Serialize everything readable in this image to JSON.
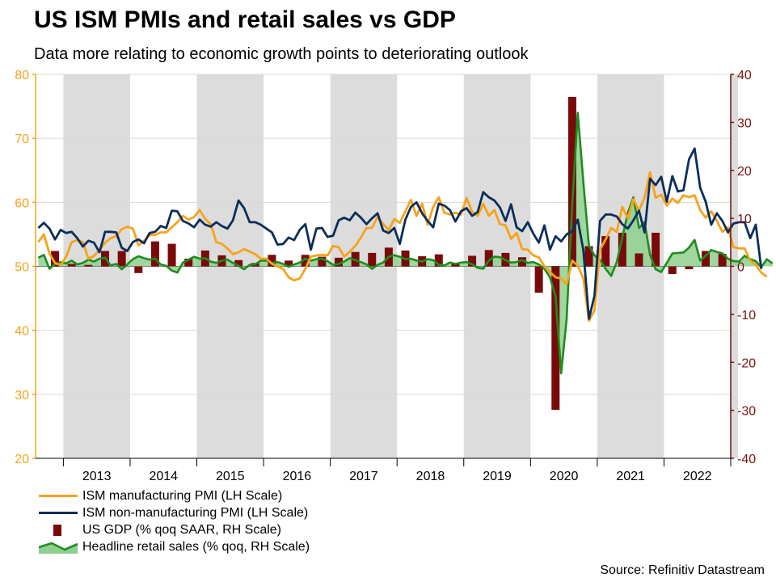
{
  "title": "US ISM PMIs and retail sales vs GDP",
  "subtitle": "Data more relating to economic growth points to deteriorating outlook",
  "source": "Source: Refinitiv Datastream",
  "colors": {
    "ism_manufacturing": "#f7a21b",
    "ism_services": "#0b2e5a",
    "gdp": "#7a0a0a",
    "retail": "#1e8c1e",
    "retail_fill": "#8fcf8f",
    "shade": "#dcdcdc",
    "left_axis": "#f7a21b",
    "right_axis": "#7a1414"
  },
  "legend": [
    {
      "key": "ism_manufacturing",
      "label": "ISM manufacturing PMI (LH Scale)"
    },
    {
      "key": "ism_services",
      "label": "ISM non-manufacturing PMI (LH Scale)"
    },
    {
      "key": "gdp",
      "label": "US GDP (% qoq SAAR, RH Scale)"
    },
    {
      "key": "retail",
      "label": "Headline retail sales (% qoq, RH Scale)"
    }
  ],
  "chart_data": {
    "type": "line",
    "x_start": "2012-08",
    "x_end": "2023-01",
    "years": [
      "2013",
      "2014",
      "2015",
      "2016",
      "2017",
      "2018",
      "2019",
      "2020",
      "2021",
      "2022"
    ],
    "shaded_years": [
      "2013",
      "2015",
      "2017",
      "2019",
      "2021"
    ],
    "left_axis": {
      "min": 20,
      "max": 80,
      "ticks": [
        20,
        30,
        40,
        50,
        60,
        70,
        80
      ]
    },
    "right_axis": {
      "min": -40,
      "max": 40,
      "ticks": [
        -40,
        -30,
        -20,
        -10,
        0,
        10,
        20,
        30,
        40
      ]
    },
    "gridlines": true,
    "series": [
      {
        "key": "ism_manufacturing",
        "name": "ISM manufacturing PMI (LH Scale)",
        "axis": "left",
        "kind": "line",
        "start": "2012-08",
        "values": [
          53.8,
          55.0,
          52.0,
          50.5,
          50.2,
          51.5,
          53.8,
          54.1,
          53.8,
          51.2,
          51.6,
          52.6,
          53.7,
          54.4,
          54.7,
          55.8,
          56.2,
          55.9,
          53.3,
          54.0,
          54.9,
          54.9,
          55.3,
          55.3,
          56.1,
          56.9,
          57.9,
          57.3,
          57.7,
          58.8,
          57.4,
          56.6,
          53.8,
          53.5,
          52.8,
          51.9,
          52.2,
          52.7,
          52.3,
          51.9,
          51.2,
          51.2,
          50.4,
          50.0,
          49.6,
          48.3,
          47.8,
          48.1,
          49.6,
          51.5,
          51.7,
          51.8,
          51.7,
          53.2,
          53.0,
          51.5,
          52.3,
          53.2,
          54.5,
          56.0,
          56.0,
          57.7,
          56.6,
          55.7,
          57.4,
          56.8,
          58.6,
          60.4,
          57.9,
          59.8,
          56.5,
          59.3,
          60.8,
          58.4,
          58.1,
          58.4,
          58.1,
          60.7,
          58.5,
          57.9,
          59.8,
          57.9,
          58.8,
          56.6,
          56.4,
          54.3,
          55.2,
          52.7,
          52.6,
          51.7,
          51.4,
          50.0,
          49.1,
          48.3,
          48.1,
          47.2,
          50.9,
          50.1,
          48.1,
          41.5,
          43.1,
          52.6,
          54.2,
          56.0,
          55.4,
          59.3,
          57.5,
          60.5,
          58.7,
          60.8,
          64.7,
          60.7,
          61.2,
          59.5,
          60.6,
          59.9,
          61.1,
          60.8,
          61.1,
          58.8,
          57.6,
          58.6,
          57.1,
          55.4,
          56.1,
          53.0,
          52.8,
          52.8,
          50.9,
          50.2,
          49.0,
          48.4
        ]
      },
      {
        "key": "ism_services",
        "name": "ISM non-manufacturing PMI (LH Scale)",
        "axis": "left",
        "kind": "line",
        "start": "2012-08",
        "values": [
          56.0,
          56.8,
          55.9,
          54.2,
          55.7,
          55.2,
          55.4,
          54.4,
          53.1,
          54.0,
          53.7,
          52.2,
          55.4,
          55.4,
          55.3,
          52.9,
          52.4,
          53.8,
          54.2,
          53.6,
          55.2,
          55.4,
          56.3,
          56.0,
          58.7,
          58.6,
          57.1,
          56.7,
          56.1,
          57.3,
          56.5,
          56.2,
          56.9,
          56.3,
          55.9,
          57.2,
          60.3,
          59.1,
          56.9,
          56.9,
          56.5,
          55.9,
          55.3,
          53.4,
          53.5,
          54.5,
          54.1,
          55.7,
          56.6,
          52.6,
          55.9,
          56.0,
          54.6,
          54.8,
          57.2,
          57.6,
          57.2,
          58.4,
          57.6,
          56.6,
          57.5,
          58.3,
          55.6,
          55.2,
          56.0,
          53.5,
          57.3,
          59.3,
          60.0,
          58.3,
          57.1,
          56.1,
          59.8,
          59.5,
          58.8,
          57.0,
          58.6,
          59.1,
          57.9,
          58.5,
          61.6,
          60.8,
          60.3,
          59.2,
          57.1,
          59.7,
          56.1,
          55.5,
          56.9,
          55.1,
          53.7,
          56.4,
          52.6,
          54.7,
          53.9,
          55.0,
          55.5,
          57.3,
          52.5,
          41.8,
          45.4,
          57.1,
          58.1,
          58.1,
          57.8,
          56.6,
          55.9,
          57.2,
          58.7,
          55.3,
          63.7,
          62.7,
          64.0,
          60.1,
          64.1,
          61.7,
          61.9,
          66.7,
          68.4,
          62.3,
          60.1,
          56.5,
          58.3,
          57.1,
          55.3,
          56.7,
          56.9,
          56.9,
          54.4,
          56.5,
          49.6
        ]
      },
      {
        "key": "retail",
        "name": "Headline retail sales (% qoq, RH Scale)",
        "axis": "right",
        "kind": "area",
        "start": "2012-08",
        "values": [
          1.8,
          2.4,
          -0.5,
          0.5,
          0.9,
          0.6,
          1.2,
          0.4,
          0.7,
          1.4,
          1.0,
          1.6,
          1.8,
          0.2,
          0.5,
          -0.6,
          0.4,
          1.5,
          2.1,
          1.7,
          1.4,
          1.6,
          0.4,
          0.1,
          -0.9,
          -1.3,
          0.8,
          1.4,
          2.0,
          1.6,
          1.7,
          1.0,
          0.7,
          1.2,
          1.4,
          0.7,
          0.1,
          -0.6,
          0.3,
          0.4,
          1.2,
          1.2,
          0.7,
          0.9,
          0.5,
          -0.1,
          0.4,
          0.8,
          1.6,
          1.2,
          1.5,
          1.6,
          1.1,
          0.3,
          0.5,
          1.0,
          1.7,
          1.3,
          0.9,
          0.4,
          -0.5,
          0.3,
          0.8,
          2.0,
          2.3,
          2.0,
          1.5,
          1.6,
          1.2,
          1.0,
          1.5,
          1.3,
          0.3,
          0.2,
          0.8,
          0.5,
          0.8,
          0.9,
          0.4,
          -0.3,
          -0.5,
          1.2,
          2.0,
          1.9,
          1.3,
          0.8,
          0.9,
          1.3,
          0.7,
          0.9,
          0.4,
          -0.5,
          -2.3,
          -6.2,
          -22.3,
          -11.0,
          12.8,
          32.0,
          17.5,
          4.3,
          2.3,
          1.4,
          -0.5,
          -2.0,
          0.9,
          6.0,
          11.1,
          14.4,
          8.0,
          9.2,
          2.4,
          -0.6,
          -1.2,
          0.7,
          2.7,
          2.8,
          2.9,
          3.9,
          5.5,
          1.2,
          2.2,
          3.4,
          3.0,
          2.7,
          1.6,
          1.1,
          1.0,
          2.2,
          1.5,
          1.1,
          -0.2,
          1.5,
          0.6
        ]
      },
      {
        "key": "gdp",
        "name": "US GDP (% qoq SAAR, RH Scale)",
        "axis": "right",
        "kind": "bar",
        "quarter_months": [
          "2012-11",
          "2013-02",
          "2013-05",
          "2013-08",
          "2013-11",
          "2014-02",
          "2014-05",
          "2014-08",
          "2014-11",
          "2015-02",
          "2015-05",
          "2015-08",
          "2015-11",
          "2016-02",
          "2016-05",
          "2016-08",
          "2016-11",
          "2017-02",
          "2017-05",
          "2017-08",
          "2017-11",
          "2018-02",
          "2018-05",
          "2018-08",
          "2018-11",
          "2019-02",
          "2019-05",
          "2019-08",
          "2019-11",
          "2020-02",
          "2020-05",
          "2020-08",
          "2020-11",
          "2021-02",
          "2021-05",
          "2021-08",
          "2021-11",
          "2022-02",
          "2022-05",
          "2022-08",
          "2022-11"
        ],
        "values": [
          3.2,
          0.5,
          0.3,
          3.2,
          3.2,
          -1.4,
          5.2,
          4.7,
          1.6,
          3.3,
          2.3,
          1.3,
          0.7,
          2.4,
          1.2,
          2.4,
          2.0,
          1.8,
          3.0,
          2.8,
          3.9,
          3.3,
          2.1,
          2.5,
          0.7,
          2.2,
          3.4,
          2.8,
          1.9,
          -5.5,
          -29.9,
          35.3,
          4.2,
          6.3,
          7.0,
          2.7,
          7.0,
          -1.6,
          -0.6,
          3.2,
          2.6
        ]
      }
    ]
  }
}
